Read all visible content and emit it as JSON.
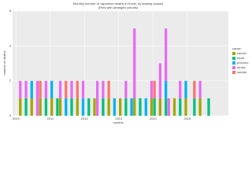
{
  "chart_data": {
    "type": "stacked-bar",
    "title": "Monthly number of Japanese deaths in Kochi, by leading causes",
    "subtitle": "(Files with arranged cohorts)",
    "x_label": "months",
    "y_label": "number of deaths",
    "legend_title": "cause",
    "x": [
      2010.125,
      2010.292,
      2010.458,
      2010.625,
      2010.708,
      2010.875,
      2011.042,
      2011.208,
      2011.292,
      2011.458,
      2011.625,
      2011.792,
      2011.958,
      2012.125,
      2012.292,
      2012.375,
      2012.542,
      2012.708,
      2012.875,
      2013.042,
      2013.208,
      2013.375,
      2013.458,
      2013.625,
      2013.792,
      2013.958,
      2014.042,
      2014.208,
      2014.375,
      2014.458,
      2014.625,
      2014.792,
      2014.958,
      2015.208,
      2015.375,
      2015.625
    ],
    "series": [
      {
        "name": "cancer",
        "color": "#A3A500",
        "values": [
          1,
          0,
          1,
          0,
          1,
          0,
          1,
          0,
          1,
          0,
          0,
          1,
          0,
          0,
          1,
          0,
          0,
          1,
          0,
          1,
          0,
          0,
          1,
          0,
          0,
          1,
          0,
          1,
          0,
          0,
          1,
          0,
          1,
          0,
          1,
          0
        ]
      },
      {
        "name": "heart",
        "color": "#00BF7D",
        "values": [
          0,
          1,
          0,
          0,
          0,
          1,
          0,
          1,
          0,
          0,
          1,
          0,
          0,
          1,
          0,
          0,
          1,
          0,
          0,
          0,
          1,
          0,
          0,
          1,
          0,
          0,
          1,
          0,
          1,
          0,
          0,
          1,
          0,
          1,
          0,
          1
        ]
      },
      {
        "name": "pneumo",
        "color": "#00B0F6",
        "values": [
          0,
          0,
          1,
          0,
          0,
          0,
          1,
          0,
          0,
          1,
          0,
          0,
          1,
          0,
          0,
          0,
          0,
          0,
          1,
          0,
          0,
          1,
          0,
          0,
          1,
          0,
          0,
          0,
          1,
          0,
          0,
          0,
          1,
          0,
          0,
          0
        ]
      },
      {
        "name": "stroke",
        "color": "#E76BF3",
        "values": [
          1,
          1,
          0,
          2,
          0,
          1,
          0,
          0,
          1,
          0,
          1,
          0,
          1,
          0,
          0,
          2,
          1,
          0,
          0,
          0,
          1,
          0,
          4,
          0,
          0,
          1,
          0,
          2,
          3,
          1,
          0,
          1,
          0,
          0,
          1,
          0
        ]
      },
      {
        "name": "suicide",
        "color": "#F8766D",
        "values": [
          0,
          0,
          0,
          0,
          1,
          0,
          0,
          0,
          0,
          1,
          0,
          1,
          0,
          0,
          0,
          0,
          0,
          1,
          0,
          0,
          0,
          0,
          0,
          0,
          0,
          0,
          1,
          0,
          0,
          0,
          0,
          0,
          0,
          1,
          0,
          0
        ]
      }
    ],
    "xlim": [
      2009.9,
      2016.2
    ],
    "xticks": [
      2010,
      2011,
      2012,
      2013,
      2014,
      2015
    ],
    "ylim": [
      0,
      6
    ],
    "yticks": [
      0,
      2,
      4,
      6
    ],
    "grid": true
  }
}
